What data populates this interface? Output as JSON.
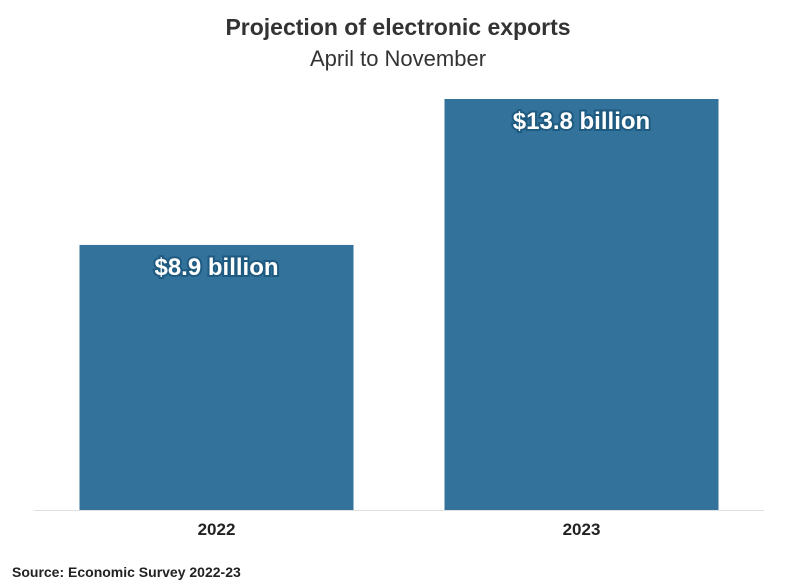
{
  "chart_data": {
    "type": "bar",
    "title": "Projection of electronic exports",
    "subtitle": "April to November",
    "categories": [
      "2022",
      "2023"
    ],
    "values": [
      8.9,
      13.8
    ],
    "data_labels": [
      "$8.9 billion",
      "$13.8 billion"
    ],
    "unit": "billion USD",
    "xlabel": "",
    "ylabel": "",
    "ylim": [
      0,
      13.8
    ],
    "grid": false,
    "bar_color": "#33729b",
    "source": "Source: Economic Survey 2022-23"
  }
}
